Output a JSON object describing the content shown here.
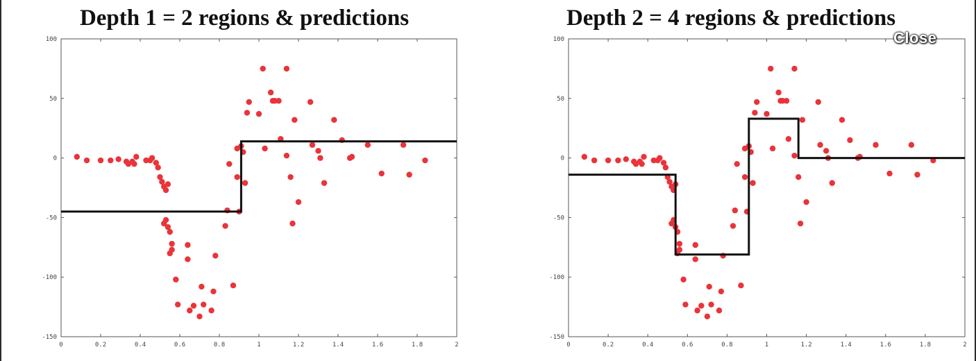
{
  "viewer": {
    "close_label": "Close"
  },
  "chart_data": [
    {
      "type": "scatter",
      "title": "Depth 1 = 2 regions & predictions",
      "xlim": [
        0,
        2
      ],
      "ylim": [
        -150,
        100
      ],
      "x_ticks": [
        0,
        0.2,
        0.4,
        0.6,
        0.8,
        1,
        1.2,
        1.4,
        1.6,
        1.8,
        2
      ],
      "x_tick_labels": [
        "0",
        "0.2",
        "0.4",
        "0.6",
        "0.8",
        "1",
        "1.2",
        "1.4",
        "1.6",
        "1.8",
        "2"
      ],
      "y_ticks": [
        100,
        50,
        0,
        -50,
        -100,
        -150
      ],
      "y_tick_labels": [
        "100",
        "50",
        "0",
        "-50",
        "-100",
        "-150"
      ],
      "point_color": "#e8343a",
      "line_color": "#111111",
      "points": [
        [
          0.08,
          1
        ],
        [
          0.13,
          -2
        ],
        [
          0.2,
          -2
        ],
        [
          0.25,
          -2
        ],
        [
          0.29,
          -1
        ],
        [
          0.33,
          -3
        ],
        [
          0.34,
          -5
        ],
        [
          0.36,
          -3
        ],
        [
          0.37,
          -5
        ],
        [
          0.38,
          1
        ],
        [
          0.43,
          -2
        ],
        [
          0.45,
          -2
        ],
        [
          0.46,
          0
        ],
        [
          0.48,
          -4
        ],
        [
          0.49,
          -8
        ],
        [
          0.5,
          -16
        ],
        [
          0.51,
          -20
        ],
        [
          0.52,
          -24
        ],
        [
          0.53,
          -27
        ],
        [
          0.54,
          -22
        ],
        [
          0.52,
          -55
        ],
        [
          0.53,
          -52
        ],
        [
          0.54,
          -58
        ],
        [
          0.55,
          -62
        ],
        [
          0.56,
          -72
        ],
        [
          0.55,
          -80
        ],
        [
          0.56,
          -77
        ],
        [
          0.58,
          -102
        ],
        [
          0.59,
          -123
        ],
        [
          0.64,
          -73
        ],
        [
          0.64,
          -85
        ],
        [
          0.65,
          -128
        ],
        [
          0.67,
          -124
        ],
        [
          0.7,
          -133
        ],
        [
          0.71,
          -108
        ],
        [
          0.72,
          -123
        ],
        [
          0.76,
          -128
        ],
        [
          0.77,
          -112
        ],
        [
          0.78,
          -82
        ],
        [
          0.83,
          -57
        ],
        [
          0.84,
          -44
        ],
        [
          0.85,
          -5
        ],
        [
          0.87,
          -107
        ],
        [
          0.89,
          -16
        ],
        [
          0.89,
          8
        ],
        [
          0.9,
          -45
        ],
        [
          0.91,
          10
        ],
        [
          0.92,
          5
        ],
        [
          0.93,
          -21
        ],
        [
          0.94,
          38
        ],
        [
          0.95,
          47
        ],
        [
          1.0,
          37
        ],
        [
          1.02,
          75
        ],
        [
          1.03,
          8
        ],
        [
          1.06,
          55
        ],
        [
          1.07,
          48
        ],
        [
          1.08,
          48
        ],
        [
          1.1,
          48
        ],
        [
          1.11,
          16
        ],
        [
          1.14,
          75
        ],
        [
          1.14,
          2
        ],
        [
          1.16,
          -16
        ],
        [
          1.17,
          -55
        ],
        [
          1.18,
          32
        ],
        [
          1.2,
          -37
        ],
        [
          1.26,
          47
        ],
        [
          1.27,
          11
        ],
        [
          1.3,
          6
        ],
        [
          1.31,
          0
        ],
        [
          1.33,
          -21
        ],
        [
          1.38,
          32
        ],
        [
          1.42,
          15
        ],
        [
          1.46,
          0
        ],
        [
          1.47,
          1
        ],
        [
          1.55,
          11
        ],
        [
          1.62,
          -13
        ],
        [
          1.73,
          11
        ],
        [
          1.76,
          -14
        ],
        [
          1.84,
          -2
        ]
      ],
      "step_line": [
        [
          0,
          -45
        ],
        [
          0.91,
          -45
        ],
        [
          0.91,
          14
        ],
        [
          2,
          14
        ]
      ]
    },
    {
      "type": "scatter",
      "title": "Depth 2 = 4 regions & predictions",
      "xlim": [
        0,
        2
      ],
      "ylim": [
        -150,
        100
      ],
      "x_ticks": [
        0,
        0.2,
        0.4,
        0.6,
        0.8,
        1,
        1.2,
        1.4,
        1.6,
        1.8,
        2
      ],
      "x_tick_labels": [
        "0",
        "0.2",
        "0.4",
        "0.6",
        "0.8",
        "1",
        "1.2",
        "1.4",
        "1.6",
        "1.8",
        "2"
      ],
      "y_ticks": [
        100,
        50,
        0,
        -50,
        -100,
        -150
      ],
      "y_tick_labels": [
        "100",
        "50",
        "0",
        "-50",
        "-100",
        "-150"
      ],
      "point_color": "#e8343a",
      "line_color": "#111111",
      "points": [
        [
          0.08,
          1
        ],
        [
          0.13,
          -2
        ],
        [
          0.2,
          -2
        ],
        [
          0.25,
          -2
        ],
        [
          0.29,
          -1
        ],
        [
          0.33,
          -3
        ],
        [
          0.34,
          -5
        ],
        [
          0.36,
          -3
        ],
        [
          0.37,
          -5
        ],
        [
          0.38,
          1
        ],
        [
          0.43,
          -2
        ],
        [
          0.45,
          -2
        ],
        [
          0.46,
          0
        ],
        [
          0.48,
          -4
        ],
        [
          0.49,
          -8
        ],
        [
          0.5,
          -16
        ],
        [
          0.51,
          -20
        ],
        [
          0.52,
          -24
        ],
        [
          0.53,
          -27
        ],
        [
          0.54,
          -22
        ],
        [
          0.52,
          -55
        ],
        [
          0.53,
          -52
        ],
        [
          0.54,
          -58
        ],
        [
          0.55,
          -62
        ],
        [
          0.56,
          -72
        ],
        [
          0.55,
          -80
        ],
        [
          0.56,
          -77
        ],
        [
          0.58,
          -102
        ],
        [
          0.59,
          -123
        ],
        [
          0.64,
          -73
        ],
        [
          0.64,
          -85
        ],
        [
          0.65,
          -128
        ],
        [
          0.67,
          -124
        ],
        [
          0.7,
          -133
        ],
        [
          0.71,
          -108
        ],
        [
          0.72,
          -123
        ],
        [
          0.76,
          -128
        ],
        [
          0.77,
          -112
        ],
        [
          0.78,
          -82
        ],
        [
          0.83,
          -57
        ],
        [
          0.84,
          -44
        ],
        [
          0.85,
          -5
        ],
        [
          0.87,
          -107
        ],
        [
          0.89,
          -16
        ],
        [
          0.89,
          8
        ],
        [
          0.9,
          -45
        ],
        [
          0.91,
          10
        ],
        [
          0.92,
          5
        ],
        [
          0.93,
          -21
        ],
        [
          0.94,
          38
        ],
        [
          0.95,
          47
        ],
        [
          1.0,
          37
        ],
        [
          1.02,
          75
        ],
        [
          1.03,
          8
        ],
        [
          1.06,
          55
        ],
        [
          1.07,
          48
        ],
        [
          1.08,
          48
        ],
        [
          1.1,
          48
        ],
        [
          1.11,
          16
        ],
        [
          1.14,
          75
        ],
        [
          1.14,
          2
        ],
        [
          1.16,
          -16
        ],
        [
          1.17,
          -55
        ],
        [
          1.18,
          32
        ],
        [
          1.2,
          -37
        ],
        [
          1.26,
          47
        ],
        [
          1.27,
          11
        ],
        [
          1.3,
          6
        ],
        [
          1.31,
          0
        ],
        [
          1.33,
          -21
        ],
        [
          1.38,
          32
        ],
        [
          1.42,
          15
        ],
        [
          1.46,
          0
        ],
        [
          1.47,
          1
        ],
        [
          1.55,
          11
        ],
        [
          1.62,
          -13
        ],
        [
          1.73,
          11
        ],
        [
          1.76,
          -14
        ],
        [
          1.84,
          -2
        ]
      ],
      "step_line": [
        [
          0,
          -14
        ],
        [
          0.54,
          -14
        ],
        [
          0.54,
          -81
        ],
        [
          0.91,
          -81
        ],
        [
          0.91,
          33
        ],
        [
          1.16,
          33
        ],
        [
          1.16,
          0
        ],
        [
          2,
          0
        ]
      ]
    }
  ]
}
